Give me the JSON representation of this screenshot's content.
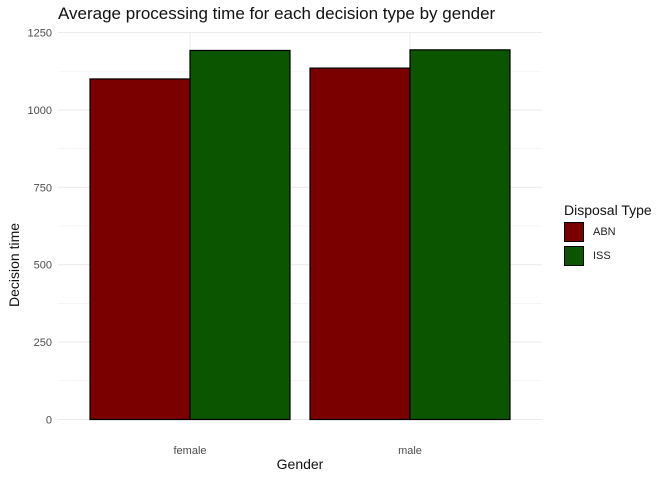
{
  "chart_data": {
    "type": "bar",
    "title": "Average processing time for each decision type by gender",
    "xlabel": "Gender",
    "ylabel": "Decision time",
    "categories": [
      "female",
      "male"
    ],
    "series": [
      {
        "name": "ABN",
        "values": [
          1100,
          1135
        ],
        "color": "#7a0000"
      },
      {
        "name": "ISS",
        "values": [
          1192,
          1194
        ],
        "color": "#0b5500"
      }
    ],
    "ylim": [
      0,
      1250
    ],
    "yticks": [
      0,
      250,
      500,
      750,
      1000,
      1250
    ],
    "grid": true,
    "legend": {
      "title": "Disposal Type",
      "position": "right"
    }
  }
}
